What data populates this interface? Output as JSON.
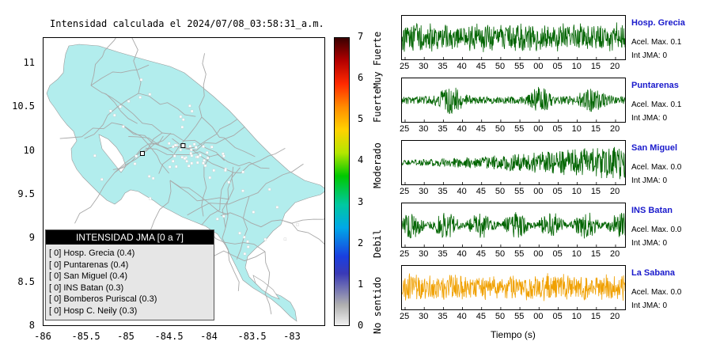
{
  "chart_data": [
    {
      "type": "map",
      "title": "Intensidad calculada el 2024/07/08_03:58:31_a.m.",
      "x_ticks": [
        "-86",
        "-85.5",
        "-85",
        "-84.5",
        "-84",
        "-83.5",
        "-83"
      ],
      "y_ticks": [
        "11",
        "10.5",
        "10",
        "9.5",
        "9",
        "8.5",
        "8"
      ],
      "xlim": [
        -86,
        -82.6
      ],
      "ylim": [
        8,
        11.3
      ],
      "colorbar": {
        "ticks": [
          "0",
          "1",
          "2",
          "3",
          "4",
          "5",
          "6",
          "7"
        ],
        "labels": [
          "No sentido",
          "Debil",
          "Moderado",
          "Fuerte",
          "Muy Fuerte"
        ],
        "range": [
          0,
          7
        ]
      },
      "legend": {
        "title": "INTENSIDAD JMA [0 a 7]",
        "items": [
          {
            "level": "[ 0]",
            "station": "Hosp. Grecia",
            "value": "(0.4)"
          },
          {
            "level": "[ 0]",
            "station": "Puntarenas",
            "value": "(0.4)"
          },
          {
            "level": "[ 0]",
            "station": "San Miguel",
            "value": "(0.4)"
          },
          {
            "level": "[ 0]",
            "station": "INS Batan",
            "value": "(0.3)"
          },
          {
            "level": "[ 0]",
            "station": "Bomberos Puriscal",
            "value": "(0.3)"
          },
          {
            "level": "[ 0]",
            "station": "Hosp C. Neily",
            "value": "(0.3)"
          }
        ]
      },
      "land_color": "#b2eded",
      "road_color": "#a8a8a8",
      "markers": [
        {
          "lon": -84.32,
          "lat": 10.07,
          "shape": "square"
        },
        {
          "lon": -84.81,
          "lat": 9.98,
          "shape": "square"
        }
      ]
    },
    {
      "type": "line",
      "xlabel": "Tiempo (s)",
      "x_ticks": [
        "25",
        "30",
        "35",
        "40",
        "45",
        "50",
        "55",
        "00",
        "05",
        "10",
        "15",
        "20"
      ],
      "panels": [
        {
          "name": "Hosp. Grecia",
          "acel": "Acel. Max. 0.1",
          "int": "Int JMA: 0",
          "color": "#006400",
          "amplitude": 0.85,
          "envelope": "uniform",
          "seed": 3
        },
        {
          "name": "Puntarenas",
          "acel": "Acel. Max. 0.1",
          "int": "Int JMA: 0",
          "color": "#006400",
          "amplitude": 0.75,
          "envelope": "bursty",
          "seed": 7
        },
        {
          "name": "San Miguel",
          "acel": "Acel. Max. 0.0",
          "int": "Int JMA: 0",
          "color": "#006400",
          "amplitude": 0.9,
          "envelope": "growing",
          "seed": 11
        },
        {
          "name": "INS Batan",
          "acel": "Acel. Max. 0.0",
          "int": "Int JMA: 0",
          "color": "#006400",
          "amplitude": 0.85,
          "envelope": "lowfreq",
          "seed": 5
        },
        {
          "name": "La Sabana",
          "acel": "Acel. Max. 0.0",
          "int": "Int JMA: 0",
          "color": "#f0a000",
          "amplitude": 0.8,
          "envelope": "uniform",
          "seed": 13
        }
      ]
    }
  ]
}
